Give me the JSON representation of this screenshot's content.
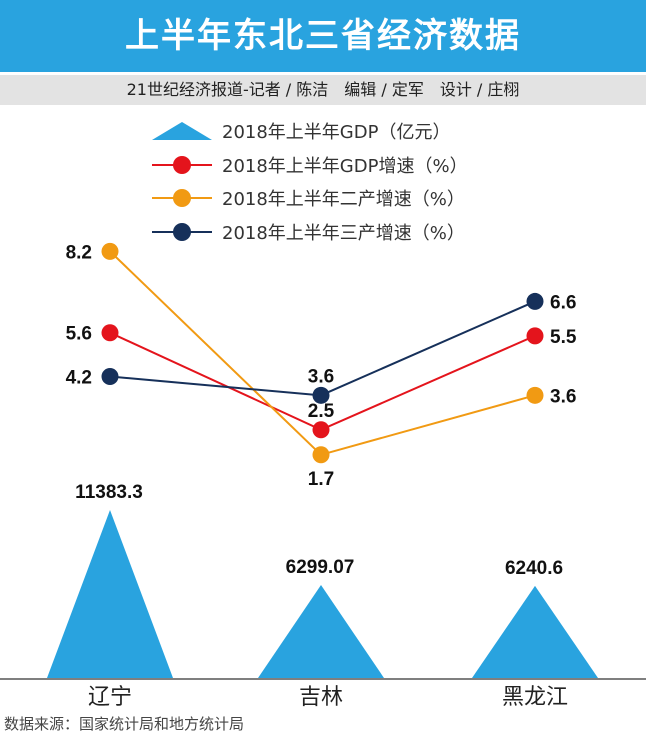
{
  "header": {
    "title": "上半年东北三省经济数据",
    "credits": "21世纪经济报道-记者 / 陈洁　编辑 / 定军　设计 / 庄栩"
  },
  "footer": {
    "source": "数据来源：国家统计局和地方统计局"
  },
  "colors": {
    "accent": "#29a3df",
    "gdp_growth": "#e4141c",
    "secondary": "#f19a13",
    "tertiary": "#16305a"
  },
  "chart_data": {
    "type": "bar",
    "title": "上半年东北三省经济数据",
    "categories": [
      "辽宁",
      "吉林",
      "黑龙江"
    ],
    "series": [
      {
        "name": "2018年上半年GDP（亿元）",
        "type": "triangle",
        "color": "#29a3df",
        "values": [
          11383.3,
          6299.07,
          6240.6
        ],
        "labels": [
          "11383.3",
          "6299.07",
          "6240.6"
        ]
      },
      {
        "name": "2018年上半年GDP增速（%）",
        "type": "line",
        "color": "#e4141c",
        "values": [
          5.6,
          2.5,
          5.5
        ],
        "labels": [
          "5.6",
          "2.5",
          "5.5"
        ]
      },
      {
        "name": "2018年上半年二产增速（%）",
        "type": "line",
        "color": "#f19a13",
        "values": [
          8.2,
          1.7,
          3.6
        ],
        "labels": [
          "8.2",
          "1.7",
          "3.6"
        ]
      },
      {
        "name": "2018年上半年三产增速（%）",
        "type": "line",
        "color": "#16305a",
        "values": [
          4.2,
          3.6,
          6.6
        ],
        "labels": [
          "4.2",
          "3.6",
          "6.6"
        ]
      }
    ],
    "legend": "top-center"
  }
}
